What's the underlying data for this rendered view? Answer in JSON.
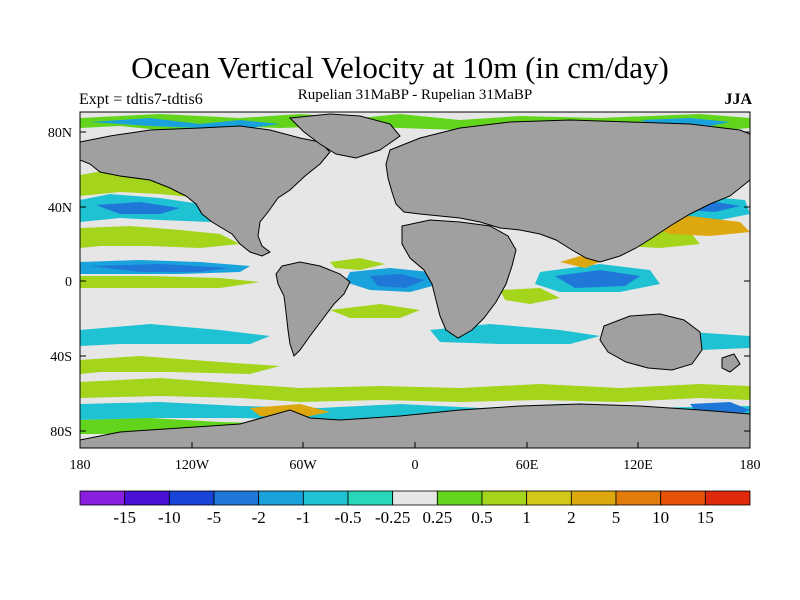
{
  "title": "Ocean Vertical Velocity at 10m (in cm/day)",
  "experiment": "Expt = tdtis7-tdtis6",
  "comparison": "Rupelian  31MaBP - Rupelian  31MaBP",
  "season": "JJA",
  "lat_ticks": [
    "80N",
    "40N",
    "0",
    "40S",
    "80S"
  ],
  "lon_ticks": [
    "180",
    "120W",
    "60W",
    "0",
    "60E",
    "120E",
    "180"
  ],
  "colorbar": {
    "colors": [
      "#8a1ee0",
      "#4a10d8",
      "#1a44d8",
      "#1f78d8",
      "#1aa2dc",
      "#1ec2d2",
      "#28d6b8",
      "#e6e6e6",
      "#63d41c",
      "#a4d41c",
      "#d2c81a",
      "#dca80e",
      "#e27c0a",
      "#e65208",
      "#de2a0a"
    ],
    "labels": [
      "-15",
      "-10",
      "-5",
      "-2",
      "-1",
      "-0.5",
      "-0.25",
      "0.25",
      "0.5",
      "1",
      "2",
      "5",
      "10",
      "15"
    ]
  },
  "colors": {
    "land": "#a0a0a0",
    "ocean_neutral": "#e6e6e6"
  }
}
